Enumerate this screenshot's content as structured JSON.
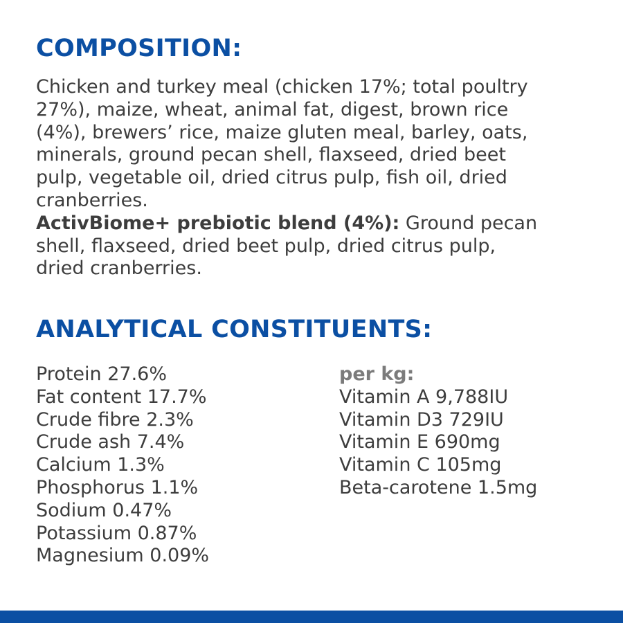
{
  "composition": {
    "title": "COMPOSITION:",
    "lines": [
      "Chicken and turkey meal (chicken 17%; total poultry",
      "27%), maize, wheat, animal fat, digest, brown rice",
      "(4%), brewers’ rice, maize gluten meal, barley, oats,",
      "minerals, ground pecan shell, flaxseed, dried beet",
      "pulp, vegetable oil, dried citrus pulp, fish oil, dried",
      "cranberries."
    ],
    "blend": {
      "label": "ActivBiome+ prebiotic blend (4%):",
      "lines": [
        "Ground pecan",
        "shell, flaxseed, dried beet pulp, dried citrus pulp,",
        "dried cranberries."
      ]
    }
  },
  "analytical": {
    "title": "ANALYTICAL CONSTITUENTS:",
    "constituents": [
      "Protein 27.6%",
      "Fat content 17.7%",
      "Crude fibre 2.3%",
      "Crude ash 7.4%",
      "Calcium 1.3%",
      "Phosphorus 1.1%",
      "Sodium 0.47%",
      "Potassium 0.87%",
      "Magnesium 0.09%"
    ],
    "per_kg": {
      "label": "per kg:",
      "items": [
        "Vitamin A 9,788IU",
        "Vitamin D3 729IU",
        "Vitamin E 690mg",
        "Vitamin C 105mg",
        "Beta-carotene 1.5mg"
      ]
    }
  }
}
